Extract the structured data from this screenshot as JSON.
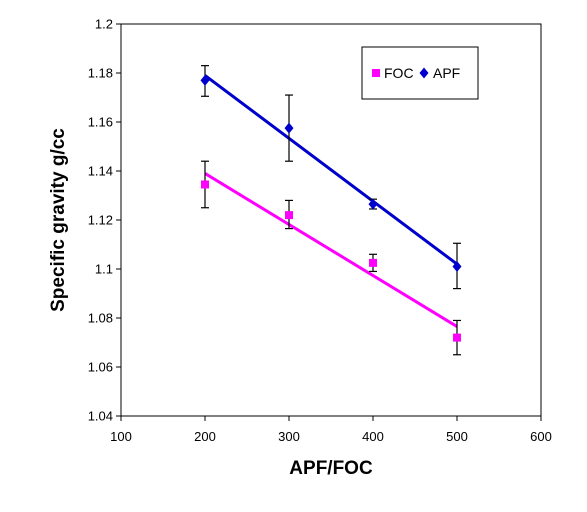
{
  "chart_data": {
    "type": "scatter",
    "title": "",
    "xlabel": "APF/FOC",
    "ylabel": "Specific gravity g/cc",
    "xlim": [
      100,
      600
    ],
    "ylim": [
      1.04,
      1.2
    ],
    "x_ticks": [
      "100",
      "200",
      "300",
      "400",
      "500",
      "600"
    ],
    "y_ticks": [
      "1.04",
      "1.06",
      "1.08",
      "1.1",
      "1.12",
      "1.14",
      "1.16",
      "1.18",
      "1.2"
    ],
    "grid": false,
    "legend_position": "top-right",
    "series": [
      {
        "name": "FOC",
        "color": "#ff00ff",
        "marker": "square",
        "x": [
          200,
          300,
          400,
          500
        ],
        "y": [
          1.1345,
          1.122,
          1.1025,
          1.072
        ],
        "error_low": [
          1.125,
          1.1165,
          1.099,
          1.065
        ],
        "error_high": [
          1.144,
          1.128,
          1.106,
          1.079
        ],
        "trendline": {
          "x": [
            200,
            500
          ],
          "y": [
            1.139,
            1.0765
          ]
        }
      },
      {
        "name": "APF",
        "color": "#0000cc",
        "marker": "diamond",
        "x": [
          200,
          300,
          400,
          500
        ],
        "y": [
          1.177,
          1.1575,
          1.1265,
          1.101
        ],
        "error_low": [
          1.1705,
          1.144,
          1.1245,
          1.092
        ],
        "error_high": [
          1.183,
          1.171,
          1.1285,
          1.1105
        ],
        "trendline": {
          "x": [
            200,
            500
          ],
          "y": [
            1.179,
            1.102
          ]
        }
      }
    ]
  }
}
